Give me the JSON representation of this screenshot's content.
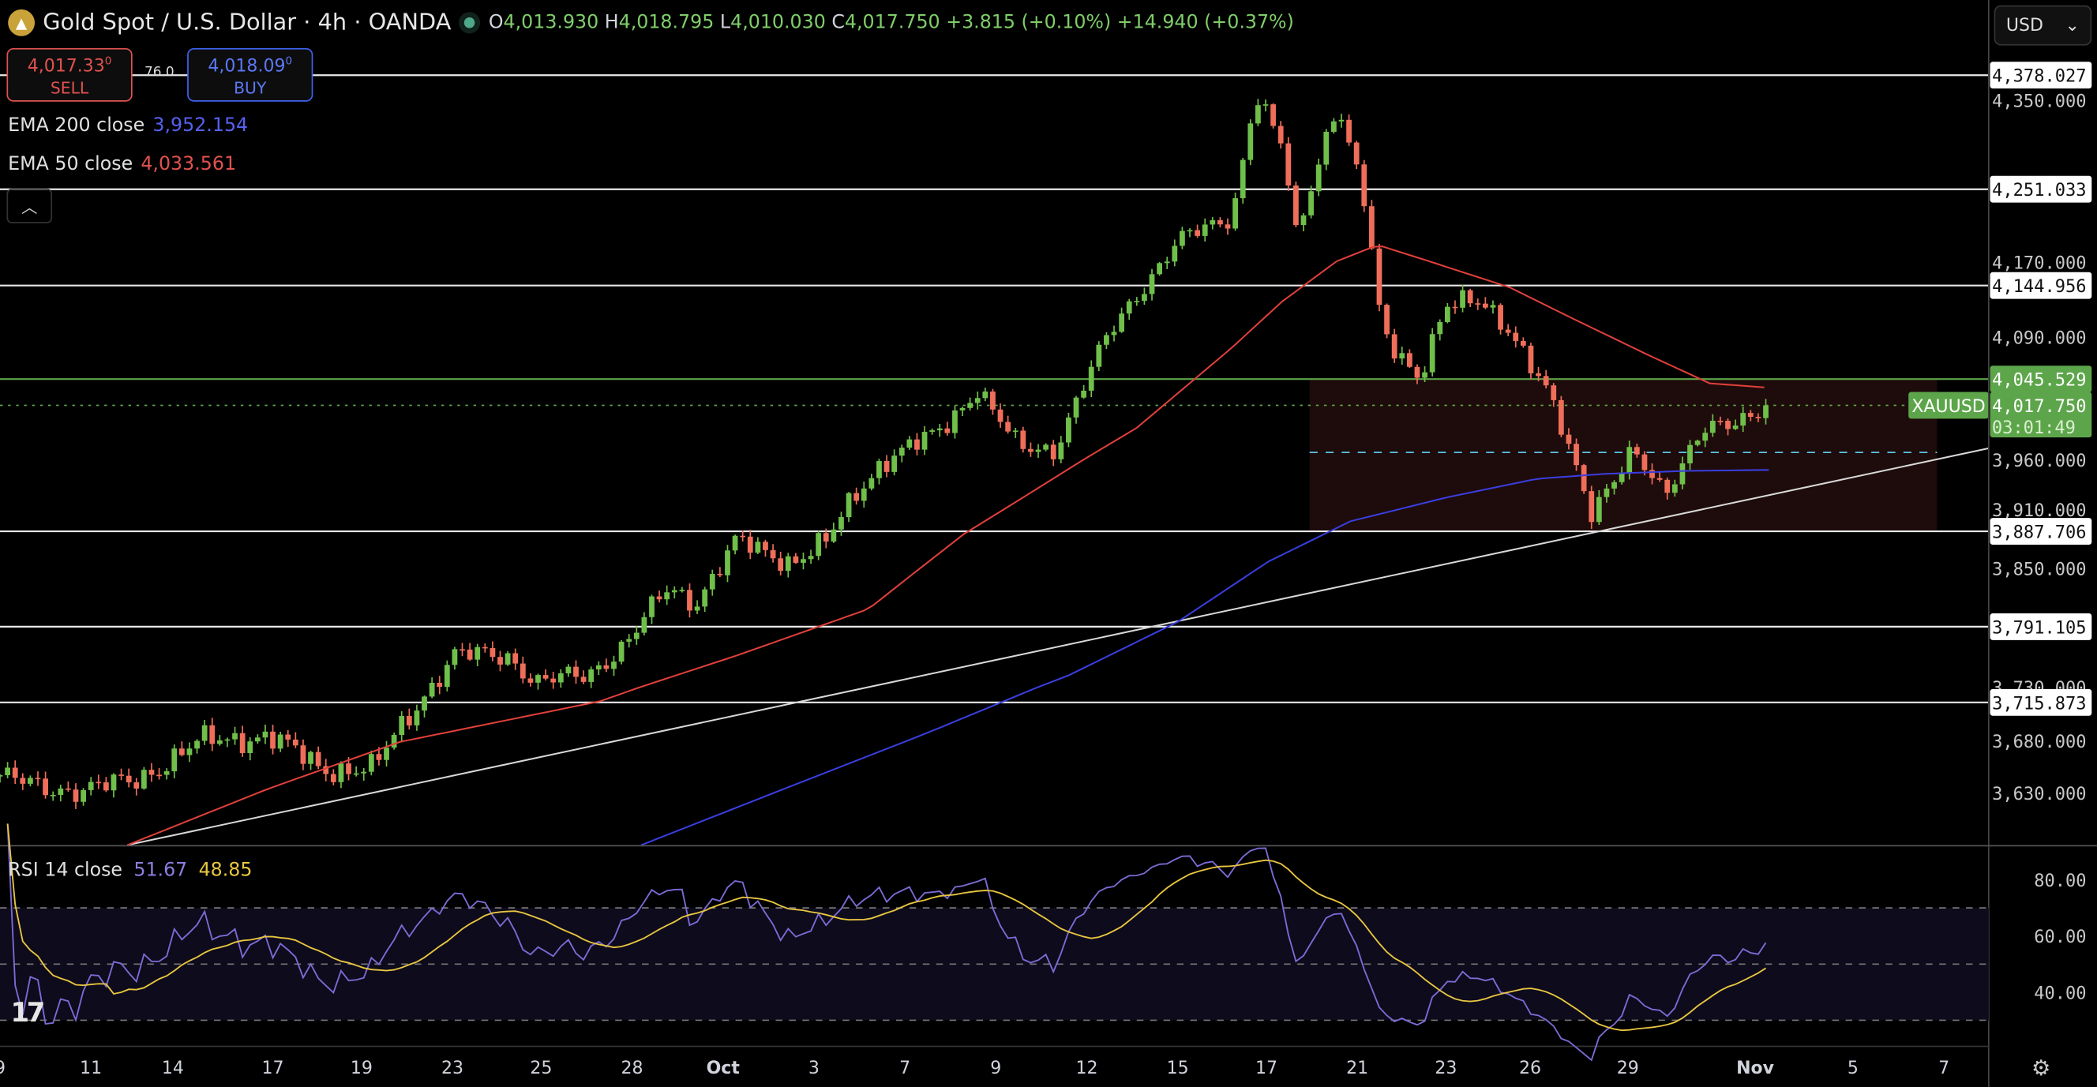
{
  "header": {
    "title": "Gold Spot / U.S. Dollar · 4h · OANDA",
    "open_label": "O",
    "open": "4,013.930",
    "high_label": "H",
    "high": "4,018.795",
    "low_label": "L",
    "low": "4,010.030",
    "close_label": "C",
    "close": "4,017.750",
    "change": "+3.815 (+0.10%)",
    "change2": "+14.940 (+0.37%)"
  },
  "trade": {
    "sell_price": "4,017.33",
    "sell_sup": "0",
    "sell_label": "SELL",
    "spread": "76.0",
    "buy_price": "4,018.09",
    "buy_sup": "0",
    "buy_label": "BUY"
  },
  "indicators": {
    "ema200_label": "EMA 200 close",
    "ema200_value": "3,952.154",
    "ema50_label": "EMA 50 close",
    "ema50_value": "4,033.561",
    "rsi_label": "RSI 14 close",
    "rsi_value": "51.67",
    "rsi_ma_value": "48.85"
  },
  "currency": "USD",
  "symbol_tag": "XAUUSD",
  "current_price": "4,017.750",
  "countdown": "03:01:49",
  "colors": {
    "up": "#6fbf4a",
    "down": "#ef6e5a",
    "ema50": "#e0403a",
    "ema200": "#3a3ee0",
    "rsi": "#7e6ad6",
    "rsi_ma": "#e8c640",
    "accent": "#5da54a"
  },
  "chart_data": {
    "type": "candlestick",
    "price_ticks": [
      {
        "p": 4350,
        "label": "4,350.000"
      },
      {
        "p": 4170,
        "label": "4,170.000"
      },
      {
        "p": 4090,
        "label": "4,090.000"
      },
      {
        "p": 3960,
        "label": "3,960.000"
      },
      {
        "p": 3910,
        "label": "3,910.000"
      },
      {
        "p": 3850,
        "label": "3,850.000"
      },
      {
        "p": 3730,
        "label": "3,730.000"
      },
      {
        "p": 3680,
        "label": "3,680.000"
      },
      {
        "p": 3630,
        "label": "3,630.000"
      }
    ],
    "levels": [
      {
        "p": 4378.027,
        "label": "4,378.027"
      },
      {
        "p": 4251.033,
        "label": "4,251.033"
      },
      {
        "p": 4144.956,
        "label": "4,144.956"
      },
      {
        "p": 4045.529,
        "label": "4,045.529",
        "green": true
      },
      {
        "p": 3887.706,
        "label": "3,887.706"
      },
      {
        "p": 3791.105,
        "label": "3,791.105"
      },
      {
        "p": 3715.873,
        "label": "3,715.873"
      }
    ],
    "zone": {
      "from_day": 28.8,
      "to_day": 42.6,
      "top": 4045.529,
      "bottom": 3887.706,
      "mid": 3968
    },
    "trendline": [
      [
        2.8,
        3580
      ],
      [
        43.7,
        3972
      ]
    ],
    "x_labels": [
      {
        "d": 0,
        "t": "9"
      },
      {
        "d": 2,
        "t": "11"
      },
      {
        "d": 3.8,
        "t": "14"
      },
      {
        "d": 6,
        "t": "17"
      },
      {
        "d": 7.95,
        "t": "19"
      },
      {
        "d": 9.95,
        "t": "23"
      },
      {
        "d": 11.9,
        "t": "25"
      },
      {
        "d": 13.9,
        "t": "28"
      },
      {
        "d": 15.9,
        "t": "Oct"
      },
      {
        "d": 17.9,
        "t": "3"
      },
      {
        "d": 19.9,
        "t": "7"
      },
      {
        "d": 21.9,
        "t": "9"
      },
      {
        "d": 23.9,
        "t": "12"
      },
      {
        "d": 25.9,
        "t": "15"
      },
      {
        "d": 27.85,
        "t": "17"
      },
      {
        "d": 29.85,
        "t": "21"
      },
      {
        "d": 31.8,
        "t": "23"
      },
      {
        "d": 33.65,
        "t": "26"
      },
      {
        "d": 35.8,
        "t": "29"
      },
      {
        "d": 38.6,
        "t": "Nov"
      },
      {
        "d": 40.75,
        "t": "5"
      },
      {
        "d": 42.75,
        "t": "7"
      }
    ],
    "price_path": [
      [
        0,
        3647
      ],
      [
        0.9,
        3634
      ],
      [
        1.8,
        3634
      ],
      [
        2.9,
        3640
      ],
      [
        4.4,
        3679
      ],
      [
        5.9,
        3685
      ],
      [
        7.1,
        3653
      ],
      [
        8.2,
        3653
      ],
      [
        9.1,
        3710
      ],
      [
        10,
        3762
      ],
      [
        11.2,
        3762
      ],
      [
        11.8,
        3735
      ],
      [
        12.9,
        3742
      ],
      [
        13.8,
        3776
      ],
      [
        14.7,
        3830
      ],
      [
        15.3,
        3816
      ],
      [
        16.2,
        3877
      ],
      [
        17.4,
        3857
      ],
      [
        18.2,
        3877
      ],
      [
        18.8,
        3925
      ],
      [
        19.4,
        3959
      ],
      [
        20.6,
        3987
      ],
      [
        21.5,
        4036
      ],
      [
        22.4,
        3972
      ],
      [
        23.2,
        3972
      ],
      [
        23.8,
        4036
      ],
      [
        24.4,
        4093
      ],
      [
        25,
        4136
      ],
      [
        25.9,
        4192
      ],
      [
        27.1,
        4222
      ],
      [
        27.6,
        4357
      ],
      [
        28.2,
        4298
      ],
      [
        28.5,
        4199
      ],
      [
        29.4,
        4350
      ],
      [
        30,
        4238
      ],
      [
        30.4,
        4093
      ],
      [
        31.2,
        4050
      ],
      [
        31.8,
        4121
      ],
      [
        32.6,
        4128
      ],
      [
        33.2,
        4100
      ],
      [
        34.1,
        4022
      ],
      [
        35,
        3911
      ],
      [
        35.9,
        3966
      ],
      [
        36.6,
        3925
      ],
      [
        37.4,
        3994
      ],
      [
        38.2,
        3994
      ],
      [
        38.8,
        4017.75
      ]
    ],
    "ema50": [
      [
        2.8,
        3580
      ],
      [
        5.9,
        3634
      ],
      [
        8.8,
        3679
      ],
      [
        13.2,
        3717
      ],
      [
        16.2,
        3762
      ],
      [
        19.1,
        3809
      ],
      [
        21.2,
        3885
      ],
      [
        22.6,
        3925
      ],
      [
        25,
        3994
      ],
      [
        27.1,
        4079
      ],
      [
        28.2,
        4128
      ],
      [
        29.4,
        4171
      ],
      [
        30.3,
        4189
      ],
      [
        31.8,
        4165
      ],
      [
        33.2,
        4143
      ],
      [
        34.7,
        4107
      ],
      [
        36.2,
        4072
      ],
      [
        37.6,
        4041
      ],
      [
        39,
        4036
      ]
    ],
    "ema200": [
      [
        14.1,
        3580
      ],
      [
        17.6,
        3640
      ],
      [
        20.6,
        3691
      ],
      [
        23.5,
        3742
      ],
      [
        25.9,
        3796
      ],
      [
        27.9,
        3857
      ],
      [
        29.7,
        3898
      ],
      [
        31.8,
        3922
      ],
      [
        33.8,
        3941
      ],
      [
        35.3,
        3946
      ],
      [
        37.1,
        3949
      ],
      [
        39,
        3950
      ]
    ],
    "rsi_levels": [
      {
        "v": 80,
        "label": "80.00"
      },
      {
        "v": 60,
        "label": "60.00"
      },
      {
        "v": 40,
        "label": "40.00"
      }
    ]
  }
}
